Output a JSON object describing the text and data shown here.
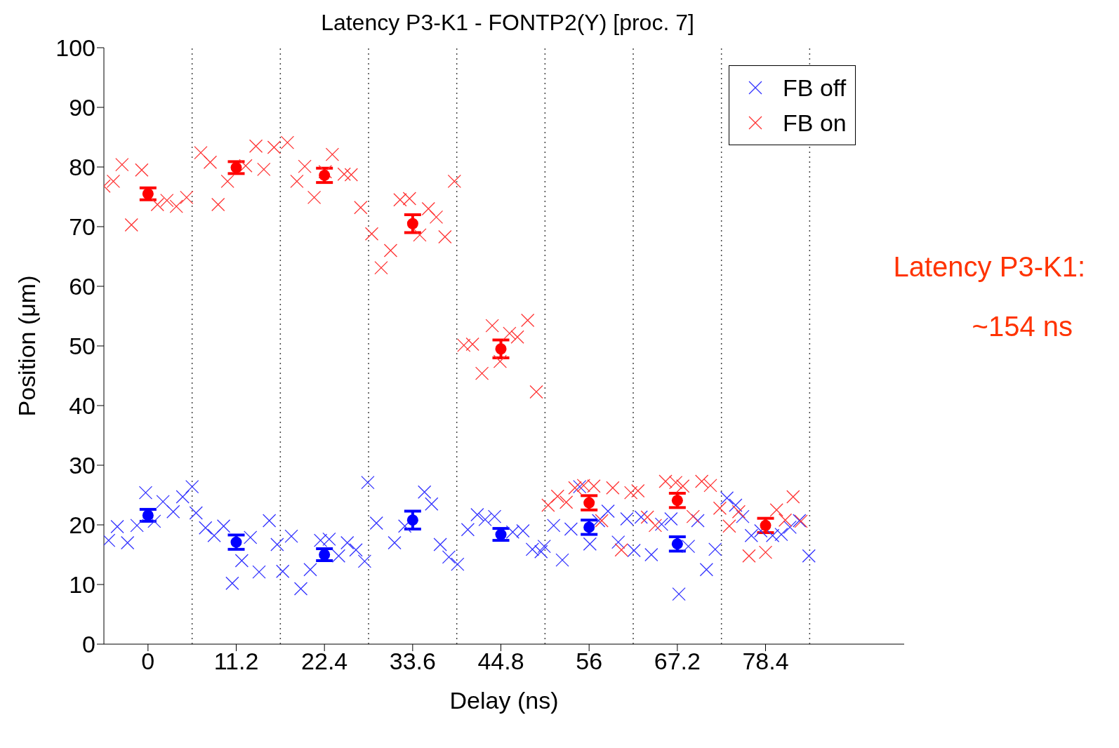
{
  "chart_data": {
    "type": "scatter",
    "title": "Latency P3-K1 - FONTP2(Y) [proc. 7]",
    "xlabel": "Delay (ns)",
    "ylabel": "Position (μm)",
    "xlim": [
      -5.6,
      96
    ],
    "xticks": [
      0,
      11.2,
      22.4,
      33.6,
      44.8,
      56,
      67.2,
      78.4
    ],
    "ylim": [
      0,
      100
    ],
    "yticks": [
      0,
      10,
      20,
      30,
      40,
      50,
      60,
      70,
      80,
      90,
      100
    ],
    "grid": false,
    "legend": "top right",
    "annotations": [
      "Latency P3-K1:",
      "~154 ns"
    ],
    "ref_lines": [
      {
        "axis": "x",
        "value": 5.6,
        "color": "#444444",
        "line_style": "dotted"
      },
      {
        "axis": "x",
        "value": 16.8,
        "color": "#444444",
        "line_style": "dotted"
      },
      {
        "axis": "x",
        "value": 28,
        "color": "#444444",
        "line_style": "dotted"
      },
      {
        "axis": "x",
        "value": 39.2,
        "color": "#444444",
        "line_style": "dotted"
      },
      {
        "axis": "x",
        "value": 50.4,
        "color": "#444444",
        "line_style": "dotted"
      },
      {
        "axis": "x",
        "value": 61.6,
        "color": "#444444",
        "line_style": "dotted"
      },
      {
        "axis": "x",
        "value": 72.8,
        "color": "#444444",
        "line_style": "dotted"
      },
      {
        "axis": "x",
        "value": 84,
        "color": "#444444",
        "line_style": "dotted"
      }
    ],
    "series": [
      {
        "name": "FB off",
        "type": "scatter",
        "marker": "cross",
        "color": "#3333ff",
        "x": [
          -5.0,
          -3.9,
          -2.6,
          -1.4,
          -0.3,
          0.8,
          1.9,
          3.2,
          4.4,
          5.6,
          6.1,
          7.3,
          8.4,
          9.6,
          10.7,
          11.9,
          13.0,
          14.1,
          15.4,
          16.4,
          17.1,
          18.2,
          19.4,
          20.6,
          21.9,
          23.0,
          24.2,
          25.3,
          26.4,
          27.5,
          27.9,
          29.0,
          31.3,
          32.6,
          35.1,
          36.0,
          37.1,
          38.2,
          39.3,
          40.6,
          41.8,
          42.8,
          44.0,
          46.3,
          47.6,
          48.8,
          49.9,
          50.3,
          51.5,
          52.6,
          53.7,
          54.8,
          56.1,
          57.2,
          58.4,
          59.7,
          60.8,
          61.7,
          62.6,
          63.9,
          65.2,
          66.4,
          67.4,
          68.6,
          69.8,
          70.9,
          72.0,
          73.5,
          74.6,
          75.5,
          76.6,
          77.8,
          79.3,
          80.4,
          81.5,
          82.7,
          83.9
        ],
        "values": [
          17.4,
          19.7,
          17.0,
          19.9,
          25.4,
          20.6,
          23.9,
          22.2,
          24.7,
          26.4,
          22.0,
          19.5,
          18.2,
          19.8,
          10.2,
          14.0,
          17.9,
          12.1,
          20.7,
          16.7,
          12.2,
          18.1,
          9.3,
          12.5,
          17.4,
          17.6,
          14.8,
          17.0,
          15.8,
          13.9,
          27.1,
          20.3,
          17.0,
          19.8,
          25.5,
          23.5,
          16.7,
          14.6,
          13.4,
          19.2,
          21.7,
          20.9,
          21.4,
          18.8,
          19.0,
          15.9,
          15.5,
          16.4,
          19.9,
          14.1,
          19.3,
          26.4,
          16.8,
          20.7,
          22.3,
          17.1,
          21.0,
          15.7,
          21.3,
          15.0,
          20.1,
          21.0,
          8.4,
          16.4,
          20.7,
          12.5,
          15.9,
          24.5,
          23.3,
          21.4,
          18.2,
          19.0,
          18.2,
          18.4,
          19.6,
          20.7,
          14.8
        ]
      },
      {
        "name": "FB on",
        "type": "scatter",
        "marker": "cross",
        "color": "#ff3333",
        "x": [
          -5.6,
          -4.4,
          -3.3,
          -2.1,
          -0.8,
          1.2,
          2.4,
          3.6,
          4.9,
          6.7,
          7.9,
          8.9,
          10.1,
          12.4,
          13.7,
          14.7,
          16.0,
          17.7,
          18.9,
          19.9,
          21.1,
          22.5,
          23.4,
          24.9,
          25.8,
          27.0,
          28.4,
          29.6,
          30.8,
          32.0,
          33.2,
          34.5,
          35.6,
          36.6,
          37.7,
          38.9,
          40.1,
          41.2,
          42.4,
          43.7,
          44.7,
          45.9,
          46.9,
          48.2,
          49.3,
          50.8,
          52.0,
          53.1,
          54.2,
          55.3,
          56.6,
          57.6,
          59.0,
          60.1,
          61.3,
          62.2,
          63.4,
          64.4,
          65.7,
          67.0,
          67.9,
          69.2,
          70.3,
          71.4,
          72.6,
          73.8,
          75.0,
          76.3,
          78.4,
          79.8,
          80.9,
          81.9,
          82.9
        ],
        "values": [
          76.8,
          77.6,
          80.4,
          70.3,
          79.5,
          73.7,
          74.4,
          73.4,
          74.9,
          82.4,
          80.8,
          73.7,
          77.6,
          80.2,
          83.5,
          79.6,
          83.3,
          84.1,
          77.6,
          80.1,
          74.9,
          79.2,
          82.1,
          78.8,
          78.7,
          73.2,
          68.8,
          63.1,
          66.0,
          74.5,
          74.7,
          68.6,
          73.0,
          71.6,
          68.3,
          77.6,
          50.1,
          50.3,
          45.4,
          53.4,
          47.4,
          52.1,
          51.5,
          54.3,
          42.3,
          23.3,
          24.8,
          23.8,
          26.2,
          26.6,
          26.5,
          20.7,
          26.2,
          15.8,
          25.4,
          25.7,
          21.3,
          19.9,
          27.3,
          27.1,
          26.5,
          21.4,
          27.3,
          26.6,
          22.8,
          19.8,
          22.2,
          14.8,
          15.4,
          22.5,
          20.8,
          24.7,
          20.6
        ]
      },
      {
        "type": "scatter",
        "marker": "circle",
        "color": "#0000ff",
        "x": [
          0,
          11.2,
          22.4,
          33.6,
          44.8,
          56,
          67.2
        ],
        "values": [
          21.6,
          17.1,
          15.0,
          20.8,
          18.4,
          19.6,
          16.8
        ],
        "errors": [
          1.0,
          1.2,
          1.0,
          1.5,
          1.0,
          1.2,
          1.2
        ]
      },
      {
        "type": "scatter",
        "marker": "circle",
        "color": "#ff0000",
        "x": [
          0,
          11.2,
          22.4,
          33.6,
          44.8,
          56,
          67.2,
          78.4
        ],
        "values": [
          75.5,
          79.9,
          78.6,
          70.5,
          49.5,
          23.7,
          24.1,
          19.9
        ],
        "errors": [
          1.0,
          1.0,
          1.2,
          1.5,
          1.5,
          1.2,
          1.2,
          1.2
        ]
      }
    ]
  }
}
